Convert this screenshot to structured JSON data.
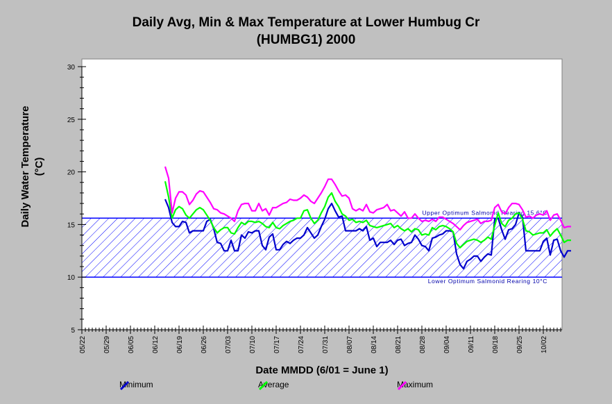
{
  "chart_data": {
    "type": "line",
    "title": "Daily Avg, Min & Max Temperature at Lower Humbug Cr",
    "subtitle": "(HUMBG1) 2000",
    "xlabel": "Date MMDD (6/01 = June 1)",
    "ylabel": "Daily Water Temperature",
    "ylabel_unit": "(°C)",
    "ylim": [
      5,
      30
    ],
    "yticks": [
      "5",
      "10",
      "15",
      "20",
      "25",
      "30"
    ],
    "xticks": [
      "05/22",
      "05/29",
      "06/05",
      "06/12",
      "06/19",
      "06/26",
      "07/03",
      "07/10",
      "07/17",
      "07/24",
      "07/31",
      "08/07",
      "08/14",
      "08/21",
      "08/28",
      "09/04",
      "09/11",
      "09/18",
      "09/25",
      "10/02"
    ],
    "band": {
      "low": 10,
      "high": 15.6,
      "color": "#0000ff",
      "upper_label": "Upper Optimum Salmonid Rearing 15.6°C",
      "lower_label": "Lower Optimum Salmonid Rearing 10°C"
    },
    "first_day_index": 24,
    "series": [
      {
        "name": "Minimum",
        "color": "#0000cc",
        "values": [
          17.4,
          16.6,
          15.2,
          14.8,
          14.8,
          15.3,
          15.2,
          14.2,
          14.4,
          14.4,
          14.4,
          14.4,
          15.3,
          15.5,
          14.6,
          13.3,
          13.2,
          12.5,
          12.5,
          13.5,
          12.5,
          12.5,
          14.0,
          13.7,
          14.3,
          14.2,
          14.4,
          14.4,
          13.0,
          12.6,
          13.8,
          14.1,
          12.6,
          12.6,
          13.1,
          13.4,
          13.2,
          13.5,
          13.7,
          13.7,
          14.0,
          14.7,
          14.2,
          13.7,
          14.0,
          14.8,
          15.5,
          16.5,
          17.0,
          16.3,
          15.7,
          15.8,
          14.4,
          14.4,
          14.4,
          14.4,
          14.6,
          14.4,
          14.8,
          13.5,
          13.7,
          12.9,
          13.3,
          13.3,
          13.3,
          13.5,
          13.1,
          13.5,
          13.6,
          13.0,
          13.2,
          13.3,
          14.0,
          13.6,
          13.0,
          12.9,
          12.5,
          13.7,
          13.8,
          14.0,
          14.1,
          14.4,
          14.4,
          14.3,
          12.2,
          11.2,
          10.8,
          11.5,
          11.7,
          12.0,
          12.0,
          11.5,
          11.9,
          12.2,
          12.1,
          15.5,
          15.6,
          14.5,
          13.6,
          14.5,
          14.6,
          15.0,
          16.1,
          15.7,
          12.5,
          12.5,
          12.5,
          12.5,
          12.5,
          13.4,
          13.7,
          12.1,
          13.5,
          13.6,
          12.5,
          11.9,
          12.5,
          12.5
        ]
      },
      {
        "name": "Average",
        "color": "#00ff00",
        "values": [
          19.1,
          17.6,
          15.6,
          16.4,
          16.7,
          16.5,
          15.9,
          15.6,
          16.0,
          16.4,
          16.6,
          16.4,
          15.9,
          15.4,
          14.7,
          14.2,
          14.5,
          14.7,
          14.7,
          14.2,
          14.1,
          14.7,
          15.2,
          15.0,
          15.3,
          15.3,
          15.2,
          15.3,
          15.1,
          14.8,
          14.7,
          15.2,
          14.7,
          14.6,
          14.9,
          15.1,
          15.3,
          15.4,
          15.6,
          15.6,
          16.3,
          16.4,
          15.6,
          15.1,
          15.4,
          16.1,
          16.7,
          17.6,
          18.0,
          17.2,
          16.7,
          16.0,
          15.8,
          15.4,
          15.5,
          15.2,
          15.3,
          15.2,
          15.4,
          14.9,
          14.8,
          14.7,
          14.8,
          14.9,
          15.0,
          15.1,
          14.7,
          14.9,
          14.6,
          14.4,
          14.6,
          14.3,
          14.6,
          14.5,
          14.0,
          14.1,
          14.0,
          14.7,
          14.5,
          14.8,
          14.9,
          14.8,
          14.6,
          14.3,
          13.2,
          12.8,
          13.1,
          13.4,
          13.5,
          13.6,
          13.5,
          13.3,
          13.5,
          13.8,
          13.6,
          14.9,
          16.1,
          15.1,
          14.8,
          15.4,
          15.6,
          16.0,
          16.1,
          15.5,
          14.4,
          14.3,
          14.0,
          14.1,
          14.2,
          14.2,
          14.5,
          13.9,
          14.3,
          14.6,
          14.0,
          13.3,
          13.5,
          13.5
        ]
      },
      {
        "name": "Maximum",
        "color": "#ff00ff",
        "values": [
          20.5,
          19.4,
          16.1,
          17.5,
          18.1,
          18.1,
          17.8,
          16.9,
          17.3,
          17.9,
          18.2,
          18.1,
          17.6,
          17.1,
          16.5,
          16.4,
          16.1,
          16.0,
          15.8,
          15.6,
          15.3,
          16.3,
          16.9,
          17.0,
          17.0,
          16.3,
          16.3,
          17.0,
          16.3,
          16.5,
          15.9,
          16.6,
          16.6,
          16.8,
          17.0,
          17.1,
          17.4,
          17.3,
          17.3,
          17.5,
          17.8,
          17.6,
          17.2,
          17.0,
          17.5,
          18.0,
          18.6,
          19.3,
          19.3,
          18.8,
          18.2,
          17.7,
          17.8,
          17.5,
          16.5,
          16.3,
          16.5,
          16.3,
          16.9,
          16.2,
          16.1,
          16.4,
          16.5,
          16.6,
          16.9,
          16.3,
          16.4,
          16.1,
          15.8,
          16.2,
          15.6,
          15.6,
          16.0,
          15.6,
          15.3,
          15.4,
          15.3,
          15.5,
          15.3,
          15.7,
          15.7,
          15.5,
          15.3,
          15.1,
          14.8,
          14.5,
          14.9,
          15.2,
          15.3,
          15.4,
          15.5,
          15.1,
          15.3,
          15.3,
          15.4,
          16.6,
          16.9,
          16.2,
          16.0,
          16.6,
          17.0,
          17.0,
          16.9,
          16.4,
          15.7,
          15.8,
          15.6,
          15.9,
          16.0,
          15.9,
          16.3,
          15.4,
          15.9,
          16.0,
          15.4,
          14.7,
          14.8,
          14.8
        ]
      }
    ]
  }
}
